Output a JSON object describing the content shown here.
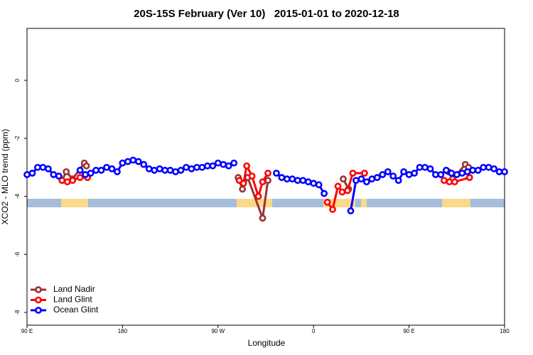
{
  "chart_data": {
    "type": "line",
    "title": "20S-15S February (Ver 10)   2015-01-01 to 2020-12-18",
    "x_label": "Longitude",
    "y_label": "XCO2 - MLO trend (ppm)",
    "xlim": [
      90,
      540
    ],
    "xticks": [
      {
        "value": 90,
        "label": "90 E"
      },
      {
        "value": 180,
        "label": "180"
      },
      {
        "value": 270,
        "label": "90 W"
      },
      {
        "value": 360,
        "label": "0"
      },
      {
        "value": 450,
        "label": "90 E"
      },
      {
        "value": 540,
        "label": "180"
      }
    ],
    "ylim": [
      -8.44,
      1.79
    ],
    "yticks": [
      0,
      -2,
      -4,
      -6,
      -8
    ],
    "legend": "bottom-left",
    "series": [
      {
        "name": "Land Nadir",
        "color": "#993333",
        "x": [
          123,
          127,
          133,
          144,
          146,
          200,
          289,
          293,
          298,
          312,
          317,
          350,
          388,
          393,
          440,
          487,
          491,
          503,
          506
        ],
        "values": [
          -3.45,
          -3.15,
          -3.4,
          -2.85,
          -2.95,
          null,
          -3.35,
          -3.75,
          -3.35,
          -4.75,
          -3.45,
          null,
          -3.4,
          -3.75,
          null,
          -3.15,
          -3.4,
          -2.9,
          -3.0
        ]
      },
      {
        "name": "Land Glint",
        "color": "#ff0000",
        "x": [
          123,
          128,
          133,
          140,
          147,
          160,
          180,
          200,
          290,
          294,
          297,
          302,
          308,
          312,
          317,
          350,
          373,
          378,
          383,
          387,
          392,
          397,
          408,
          440,
          483,
          488,
          493,
          507
        ],
        "values": [
          -3.45,
          -3.5,
          -3.45,
          -3.35,
          -3.35,
          null,
          -2.85,
          null,
          -3.45,
          -3.55,
          -2.95,
          -3.3,
          -4.0,
          -3.5,
          -3.2,
          null,
          -4.2,
          -4.45,
          -3.65,
          -3.85,
          -3.8,
          -3.2,
          -3.2,
          null,
          -3.45,
          -3.5,
          -3.5,
          -3.35
        ]
      },
      {
        "name": "Ocean Glint",
        "color": "#0000ff",
        "x": [
          90,
          95,
          100,
          105,
          110,
          115,
          120,
          130,
          140,
          145,
          150,
          155,
          160,
          165,
          170,
          175,
          180,
          185,
          190,
          195,
          200,
          205,
          210,
          215,
          220,
          225,
          230,
          235,
          240,
          245,
          250,
          255,
          260,
          265,
          270,
          275,
          280,
          285,
          300,
          325,
          330,
          335,
          340,
          345,
          350,
          355,
          360,
          365,
          370,
          380,
          395,
          400,
          405,
          410,
          415,
          420,
          425,
          430,
          435,
          440,
          445,
          450,
          455,
          460,
          465,
          470,
          475,
          480,
          485,
          490,
          495,
          500,
          505,
          510,
          515,
          520,
          525,
          530,
          535,
          540
        ],
        "values": [
          -3.25,
          -3.2,
          -3.0,
          -3.0,
          -3.05,
          -3.25,
          -3.3,
          null,
          -3.1,
          -3.25,
          -3.2,
          -3.1,
          -3.1,
          -3.0,
          -3.05,
          -3.15,
          -2.85,
          -2.8,
          -2.75,
          -2.8,
          -2.9,
          -3.05,
          -3.1,
          -3.05,
          -3.1,
          -3.1,
          -3.15,
          -3.1,
          -3.0,
          -3.05,
          -3.0,
          -3.0,
          -2.95,
          -2.95,
          -2.85,
          -2.9,
          -2.95,
          -2.85,
          null,
          -3.2,
          -3.35,
          -3.4,
          -3.4,
          -3.45,
          -3.45,
          -3.5,
          -3.55,
          -3.6,
          -3.9,
          null,
          -4.5,
          -3.45,
          -3.4,
          -3.5,
          -3.4,
          -3.35,
          -3.25,
          -3.15,
          -3.3,
          -3.45,
          -3.15,
          -3.25,
          -3.2,
          -3.0,
          -3.0,
          -3.05,
          -3.25,
          -3.25,
          -3.1,
          -3.2,
          -3.25,
          -3.2,
          -3.15,
          -3.1,
          -3.1,
          -3.0,
          -3.0,
          -3.05,
          -3.15,
          -3.15
        ]
      }
    ]
  }
}
